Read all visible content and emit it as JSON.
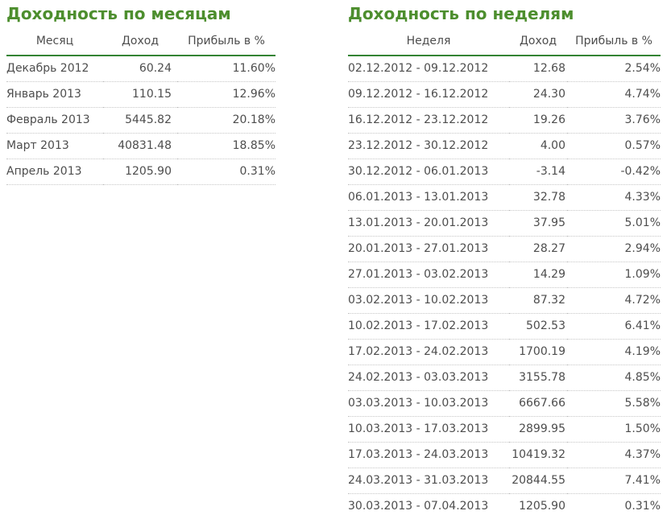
{
  "colors": {
    "title_green": "#4d8e2e",
    "header_rule_green": "#338433",
    "body_text": "#4d4d4d",
    "dotted_separator": "#c6c6c6"
  },
  "monthly": {
    "title": "Доходность по месяцам",
    "columns": [
      "Месяц",
      "Доход",
      "Прибыль в %"
    ],
    "rows": [
      [
        "Декабрь 2012",
        "60.24",
        "11.60%"
      ],
      [
        "Январь 2013",
        "110.15",
        "12.96%"
      ],
      [
        "Февраль 2013",
        "5445.82",
        "20.18%"
      ],
      [
        "Март 2013",
        "40831.48",
        "18.85%"
      ],
      [
        "Апрель 2013",
        "1205.90",
        "0.31%"
      ]
    ]
  },
  "weekly": {
    "title": "Доходность по неделям",
    "columns": [
      "Неделя",
      "Доход",
      "Прибыль в %"
    ],
    "rows": [
      [
        "02.12.2012 - 09.12.2012",
        "12.68",
        "2.54%"
      ],
      [
        "09.12.2012 - 16.12.2012",
        "24.30",
        "4.74%"
      ],
      [
        "16.12.2012 - 23.12.2012",
        "19.26",
        "3.76%"
      ],
      [
        "23.12.2012 - 30.12.2012",
        "4.00",
        "0.57%"
      ],
      [
        "30.12.2012 - 06.01.2013",
        "-3.14",
        "-0.42%"
      ],
      [
        "06.01.2013 - 13.01.2013",
        "32.78",
        "4.33%"
      ],
      [
        "13.01.2013 - 20.01.2013",
        "37.95",
        "5.01%"
      ],
      [
        "20.01.2013 - 27.01.2013",
        "28.27",
        "2.94%"
      ],
      [
        "27.01.2013 - 03.02.2013",
        "14.29",
        "1.09%"
      ],
      [
        "03.02.2013 - 10.02.2013",
        "87.32",
        "4.72%"
      ],
      [
        "10.02.2013 - 17.02.2013",
        "502.53",
        "6.41%"
      ],
      [
        "17.02.2013 - 24.02.2013",
        "1700.19",
        "4.19%"
      ],
      [
        "24.02.2013 - 03.03.2013",
        "3155.78",
        "4.85%"
      ],
      [
        "03.03.2013 - 10.03.2013",
        "6667.66",
        "5.58%"
      ],
      [
        "10.03.2013 - 17.03.2013",
        "2899.95",
        "1.50%"
      ],
      [
        "17.03.2013 - 24.03.2013",
        "10419.32",
        "4.37%"
      ],
      [
        "24.03.2013 - 31.03.2013",
        "20844.55",
        "7.41%"
      ],
      [
        "30.03.2013 - 07.04.2013",
        "1205.90",
        "0.31%"
      ]
    ]
  }
}
